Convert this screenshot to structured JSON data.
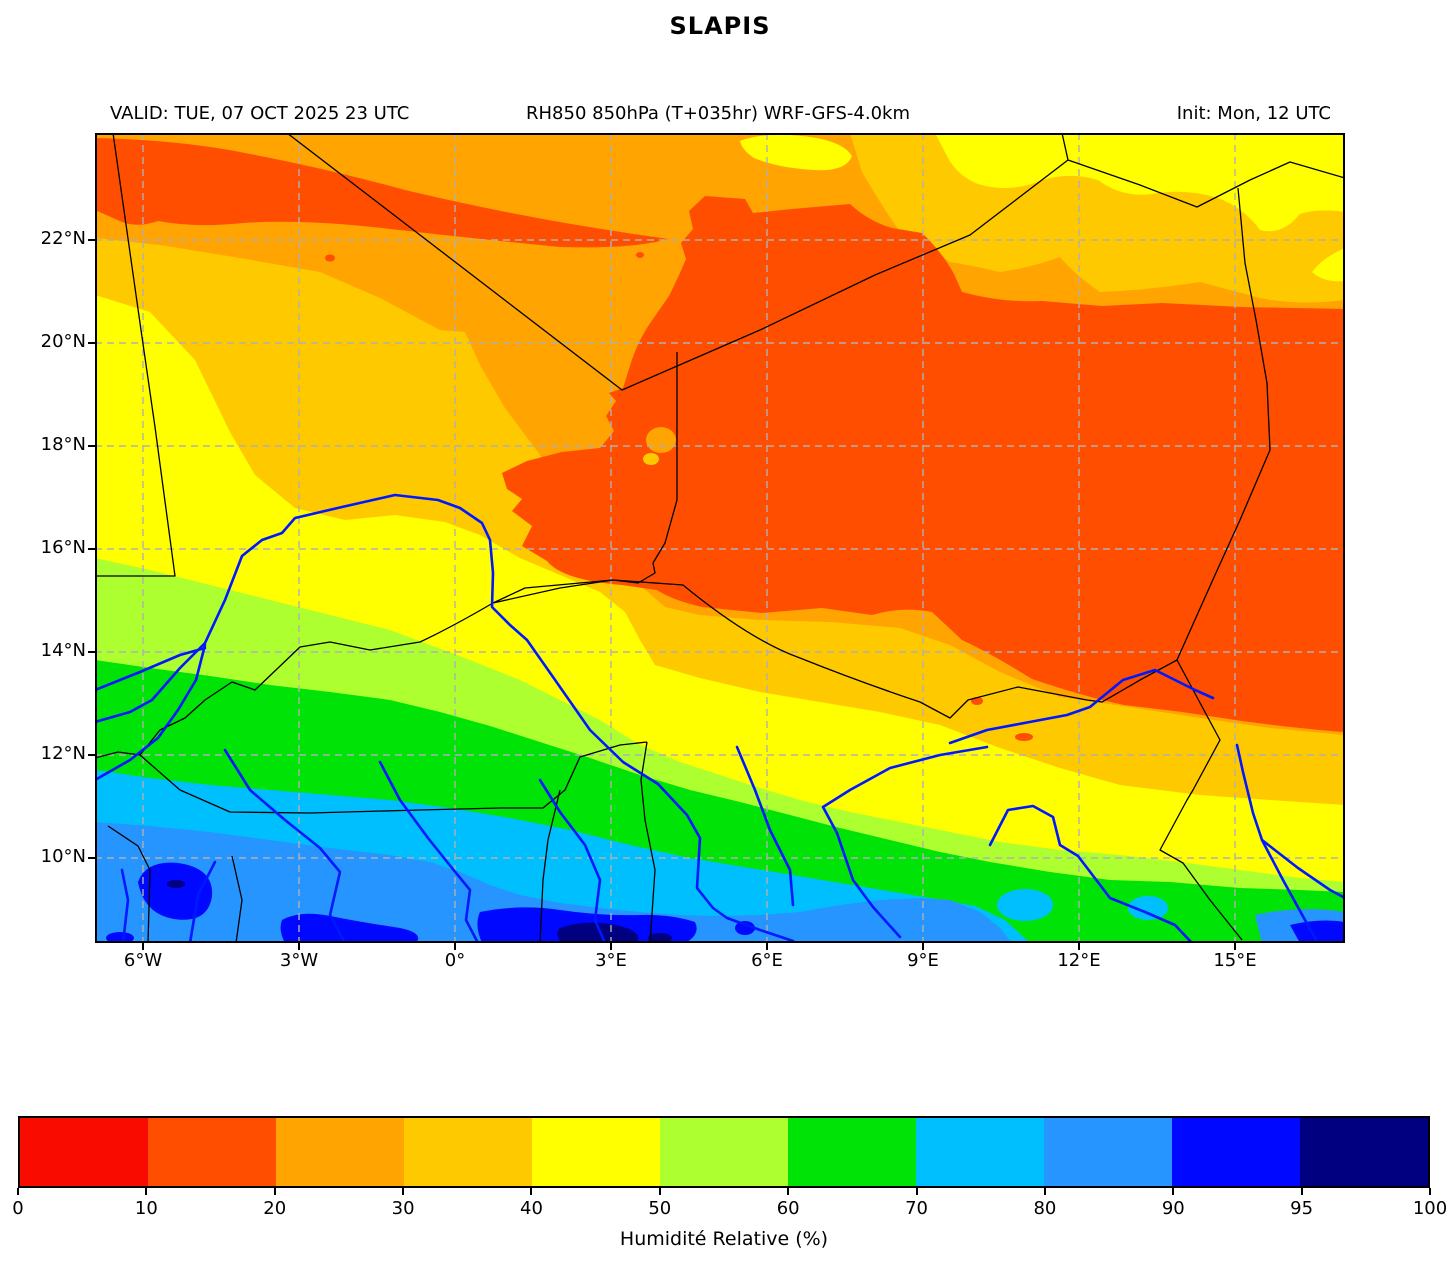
{
  "title": "SLAPIS",
  "header": {
    "valid": "VALID: TUE, 07 OCT 2025 23 UTC",
    "product": "RH850 850hPa (T+035hr) WRF-GFS-4.0km",
    "init": "Init: Mon, 12 UTC"
  },
  "map": {
    "x_tick_labels": [
      "6°W",
      "3°W",
      "0°",
      "3°E",
      "6°E",
      "9°E",
      "12°E",
      "15°E"
    ],
    "y_tick_labels": [
      "22°N",
      "20°N",
      "18°N",
      "16°N",
      "14°N",
      "12°N",
      "10°N"
    ]
  },
  "colorbar": {
    "label": "Humidité Relative (%)",
    "tick_labels": [
      "0",
      "10",
      "20",
      "30",
      "40",
      "50",
      "60",
      "70",
      "80",
      "90",
      "95",
      "100"
    ],
    "colors": [
      "#FA0B00",
      "#FF4E00",
      "#FFA400",
      "#FFC900",
      "#FFFF00",
      "#ADFF2F",
      "#00E306",
      "#00BFFF",
      "#2795FF",
      "#0008FF",
      "#000080"
    ]
  },
  "chart_data": {
    "type": "heatmap",
    "title": "SLAPIS",
    "variable": "RH850 850hPa (T+035hr) WRF-GFS-4.0km",
    "valid_time": "TUE, 07 OCT 2025 23 UTC",
    "init_time": "Mon, 12 UTC",
    "colorbar_label": "Humidité Relative (%)",
    "levels": [
      0,
      10,
      20,
      30,
      40,
      50,
      60,
      70,
      80,
      90,
      95,
      100
    ],
    "palette": [
      "#FA0B00",
      "#FF4E00",
      "#FFA400",
      "#FFC900",
      "#FFFF00",
      "#ADFF2F",
      "#00E306",
      "#00BFFF",
      "#2795FF",
      "#0008FF",
      "#000080"
    ],
    "lon_range": [
      -6.9,
      17.1
    ],
    "lat_range": [
      8.4,
      24.0
    ],
    "x_ticks": [
      "6°W",
      "3°W",
      "0°",
      "3°E",
      "6°E",
      "9°E",
      "12°E",
      "15°E"
    ],
    "y_ticks": [
      "22°N",
      "20°N",
      "18°N",
      "16°N",
      "14°N",
      "12°N",
      "10°N"
    ],
    "grid": true,
    "legend_position": "bottom",
    "sample_lons": [
      -6,
      -3,
      0,
      3,
      6,
      9,
      12,
      15
    ],
    "sample_lats": [
      23,
      21,
      19,
      17,
      15,
      13,
      11,
      9
    ],
    "rh_values_percent": [
      [
        20,
        25,
        25,
        25,
        35,
        45,
        35,
        45
      ],
      [
        25,
        25,
        25,
        15,
        15,
        25,
        35,
        25
      ],
      [
        25,
        25,
        25,
        15,
        15,
        15,
        15,
        15
      ],
      [
        35,
        35,
        30,
        15,
        15,
        15,
        15,
        15
      ],
      [
        45,
        45,
        45,
        35,
        25,
        15,
        15,
        15
      ],
      [
        55,
        55,
        45,
        45,
        45,
        35,
        20,
        15
      ],
      [
        75,
        75,
        65,
        55,
        55,
        55,
        45,
        45
      ],
      [
        85,
        85,
        80,
        85,
        80,
        75,
        65,
        65
      ]
    ],
    "annotation": "Dry 10-20% airmass over Niger/Chad; moist 70-100% zone south of ~12N; black country borders, blue rivers, dashed graticule every 2 lat / 3 lon."
  }
}
